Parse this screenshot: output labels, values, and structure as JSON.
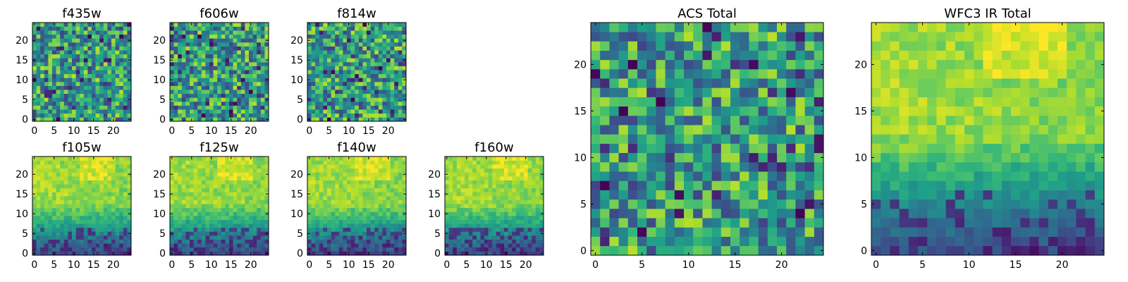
{
  "chart_data": [
    {
      "type": "heatmap",
      "title": "f435w",
      "xticks": [
        "0",
        "5",
        "10",
        "15",
        "20"
      ],
      "yticks": [
        "0",
        "5",
        "10",
        "15",
        "20"
      ],
      "xlim": [
        -0.5,
        24.5
      ],
      "ylim": [
        -0.5,
        24.5
      ],
      "grid": false,
      "colormap": "viridis",
      "pattern": "noise"
    },
    {
      "type": "heatmap",
      "title": "f606w",
      "xticks": [
        "0",
        "5",
        "10",
        "15",
        "20"
      ],
      "yticks": [
        "0",
        "5",
        "10",
        "15",
        "20"
      ],
      "xlim": [
        -0.5,
        24.5
      ],
      "ylim": [
        -0.5,
        24.5
      ],
      "grid": false,
      "colormap": "viridis",
      "pattern": "noise"
    },
    {
      "type": "heatmap",
      "title": "f814w",
      "xticks": [
        "0",
        "5",
        "10",
        "15",
        "20"
      ],
      "yticks": [
        "0",
        "5",
        "10",
        "15",
        "20"
      ],
      "xlim": [
        -0.5,
        24.5
      ],
      "ylim": [
        -0.5,
        24.5
      ],
      "grid": false,
      "colormap": "viridis",
      "pattern": "noise"
    },
    {
      "type": "heatmap",
      "title": "f105w",
      "xticks": [
        "0",
        "5",
        "10",
        "15",
        "20"
      ],
      "yticks": [
        "0",
        "5",
        "10",
        "15",
        "20"
      ],
      "xlim": [
        -0.5,
        24.5
      ],
      "ylim": [
        -0.5,
        24.5
      ],
      "grid": false,
      "colormap": "viridis",
      "pattern": "gradient"
    },
    {
      "type": "heatmap",
      "title": "f125w",
      "xticks": [
        "0",
        "5",
        "10",
        "15",
        "20"
      ],
      "yticks": [
        "0",
        "5",
        "10",
        "15",
        "20"
      ],
      "xlim": [
        -0.5,
        24.5
      ],
      "ylim": [
        -0.5,
        24.5
      ],
      "grid": false,
      "colormap": "viridis",
      "pattern": "gradient"
    },
    {
      "type": "heatmap",
      "title": "f140w",
      "xticks": [
        "0",
        "5",
        "10",
        "15",
        "20"
      ],
      "yticks": [
        "0",
        "5",
        "10",
        "15",
        "20"
      ],
      "xlim": [
        -0.5,
        24.5
      ],
      "ylim": [
        -0.5,
        24.5
      ],
      "grid": false,
      "colormap": "viridis",
      "pattern": "gradient"
    },
    {
      "type": "heatmap",
      "title": "f160w",
      "xticks": [
        "0",
        "5",
        "10",
        "15",
        "20"
      ],
      "yticks": [
        "0",
        "5",
        "10",
        "15",
        "20"
      ],
      "xlim": [
        -0.5,
        24.5
      ],
      "ylim": [
        -0.5,
        24.5
      ],
      "grid": false,
      "colormap": "viridis",
      "pattern": "gradient"
    },
    {
      "type": "heatmap",
      "title": "ACS Total",
      "xticks": [
        "0",
        "5",
        "10",
        "15",
        "20"
      ],
      "yticks": [
        "0",
        "5",
        "10",
        "15",
        "20"
      ],
      "xlim": [
        -0.5,
        24.5
      ],
      "ylim": [
        -0.5,
        24.5
      ],
      "grid": false,
      "colormap": "viridis",
      "pattern": "noise"
    },
    {
      "type": "heatmap",
      "title": "WFC3 IR Total",
      "xticks": [
        "0",
        "5",
        "10",
        "15",
        "20"
      ],
      "yticks": [
        "0",
        "5",
        "10",
        "15",
        "20"
      ],
      "xlim": [
        -0.5,
        24.5
      ],
      "ylim": [
        -0.5,
        24.5
      ],
      "grid": false,
      "colormap": "viridis",
      "pattern": "gradient"
    }
  ]
}
